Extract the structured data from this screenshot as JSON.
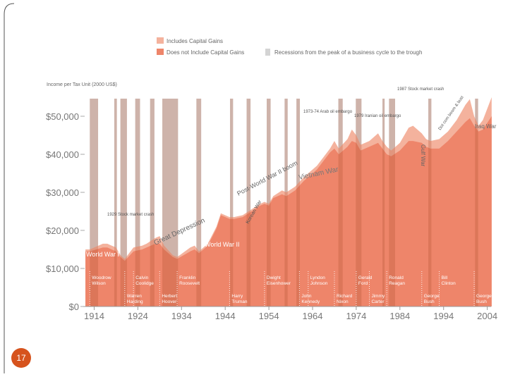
{
  "page_number": "17",
  "chart_data": {
    "type": "area",
    "y_label": "Income per Tax Unit (2000 US$)",
    "x": [
      1912,
      1913,
      1916,
      1917,
      1918,
      1919,
      1920,
      1921,
      1923,
      1925,
      1926,
      1928,
      1929,
      1930,
      1932,
      1933,
      1936,
      1937,
      1938,
      1940,
      1942,
      1943,
      1945,
      1946,
      1948,
      1950,
      1952,
      1953,
      1954,
      1955,
      1957,
      1958,
      1960,
      1962,
      1965,
      1968,
      1969,
      1970,
      1972,
      1973,
      1974,
      1975,
      1977,
      1979,
      1980,
      1981,
      1982,
      1984,
      1986,
      1987,
      1989,
      1990,
      1991,
      1993,
      1995,
      1997,
      1999,
      2000,
      2001,
      2002,
      2003,
      2005
    ],
    "series": [
      {
        "name": "Includes Capital Gains",
        "color": "#f4b29d",
        "values": [
          15000,
          15000,
          16500,
          16500,
          16000,
          15500,
          13500,
          12500,
          15500,
          16000,
          16500,
          18000,
          18500,
          16000,
          13500,
          13000,
          15500,
          16000,
          14500,
          16500,
          21000,
          24500,
          23500,
          23500,
          24000,
          25500,
          27000,
          27500,
          27000,
          29000,
          30500,
          30000,
          31500,
          34000,
          37000,
          41500,
          43500,
          41500,
          44000,
          46500,
          45000,
          42500,
          43500,
          45500,
          43500,
          42000,
          41000,
          43000,
          47000,
          47500,
          45500,
          44000,
          43500,
          44000,
          46000,
          49000,
          53000,
          54500,
          50000,
          47500,
          49000,
          55000
        ]
      },
      {
        "name": "Does not Include Capital Gains",
        "color": "#ee856a",
        "values": [
          14500,
          14500,
          15500,
          15500,
          15000,
          14500,
          13000,
          12000,
          14500,
          15000,
          15500,
          16500,
          16500,
          15000,
          13000,
          12500,
          14500,
          15000,
          14000,
          16000,
          20500,
          24000,
          23000,
          23000,
          23500,
          25000,
          26500,
          27000,
          26500,
          28500,
          29500,
          29000,
          30500,
          33000,
          36000,
          40500,
          41500,
          40000,
          42000,
          43500,
          43000,
          41000,
          42000,
          43000,
          41500,
          40000,
          39500,
          41000,
          43500,
          43500,
          43000,
          42000,
          41500,
          41500,
          43500,
          46000,
          48500,
          49500,
          47500,
          46000,
          46500,
          50000
        ]
      }
    ],
    "recession_label": "Recessions from the peak of a business cycle to the trough",
    "recessions": [
      [
        1913,
        1914.9
      ],
      [
        1918.6,
        1919.2
      ],
      [
        1920,
        1921.5
      ],
      [
        1923.4,
        1924.5
      ],
      [
        1926.8,
        1927.8
      ],
      [
        1929.6,
        1933.2
      ],
      [
        1937.4,
        1938.5
      ],
      [
        1945.1,
        1945.8
      ],
      [
        1948.9,
        1949.8
      ],
      [
        1953.5,
        1954.4
      ],
      [
        1957.6,
        1958.3
      ],
      [
        1960.3,
        1961.1
      ],
      [
        1969.9,
        1970.9
      ],
      [
        1973.9,
        1975.2
      ],
      [
        1980,
        1980.5
      ],
      [
        1981.5,
        1982.9
      ],
      [
        1990.5,
        1991.2
      ],
      [
        2001.2,
        2001.9
      ]
    ],
    "xlim": [
      1911.5,
      2006
    ],
    "xticks": [
      1914,
      1924,
      1934,
      1944,
      1954,
      1964,
      1974,
      1984,
      1994,
      2004
    ],
    "ylim": [
      0,
      55000
    ],
    "yticks": [
      {
        "value": 0,
        "label": "$0"
      },
      {
        "value": 10000,
        "label": "$10,000"
      },
      {
        "value": 20000,
        "label": "$20,000"
      },
      {
        "value": 30000,
        "label": "$30,000"
      },
      {
        "value": 40000,
        "label": "$40,000"
      },
      {
        "value": 50000,
        "label": "$50,000"
      }
    ],
    "annotations": [
      "World War I",
      "1929 Stock market crash",
      "Great Depression",
      "World War II",
      "Korean War",
      "Post-World War II boom",
      "Vietnam War",
      "1973-74 Arab oil embargo",
      "1979 Iranian oil embargo",
      "1987 Stock market crash",
      "Gulf War",
      "Dot com boom & bust",
      "Iraq War"
    ],
    "presidents": [
      "Woodrow Wilson",
      "Warren Harding",
      "Calvin Coolidge",
      "Herbert Hoover",
      "Franklin Roosevelt",
      "Harry Truman",
      "Dwight Eisenhower",
      "John Kennedy",
      "Lyndon Johnson",
      "Richard Nixon",
      "Gerald Ford",
      "Jimmy Carter",
      "Ronald Reagan",
      "George Bush",
      "Bill Clinton",
      "George Bush"
    ]
  }
}
